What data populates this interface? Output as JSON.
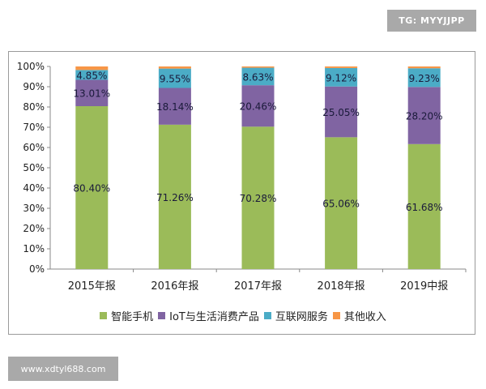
{
  "badge": "TG: MYYJJPP",
  "watermark": "www.xdtyl688.com",
  "chart_data": {
    "type": "bar",
    "stacked": true,
    "categories": [
      "2015年报",
      "2016年报",
      "2017年报",
      "2018年报",
      "2019中报"
    ],
    "ylim": [
      0,
      100
    ],
    "yticks": [
      "0%",
      "10%",
      "20%",
      "30%",
      "40%",
      "50%",
      "60%",
      "70%",
      "80%",
      "90%",
      "100%"
    ],
    "legend_position": "bottom",
    "grid": false,
    "series": [
      {
        "name": "智能手机",
        "color": "#9bbb59",
        "values": [
          80.4,
          71.26,
          70.28,
          65.06,
          61.68
        ],
        "labels": [
          "80.40%",
          "71.26%",
          "70.28%",
          "65.06%",
          "61.68%"
        ]
      },
      {
        "name": "IoT与生活消费产品",
        "color": "#8064a2",
        "values": [
          13.01,
          18.14,
          20.46,
          25.05,
          28.2
        ],
        "labels": [
          "13.01%",
          "18.14%",
          "20.46%",
          "25.05%",
          "28.20%"
        ]
      },
      {
        "name": "互联网服务",
        "color": "#4bacc6",
        "values": [
          4.85,
          9.55,
          8.63,
          9.12,
          9.23
        ],
        "labels": [
          "4.85%",
          "9.55%",
          "8.63%",
          "9.12%",
          "9.23%"
        ]
      },
      {
        "name": "其他收入",
        "color": "#f79646",
        "values": [
          1.74,
          1.05,
          0.63,
          0.77,
          0.89
        ],
        "labels": []
      }
    ]
  }
}
